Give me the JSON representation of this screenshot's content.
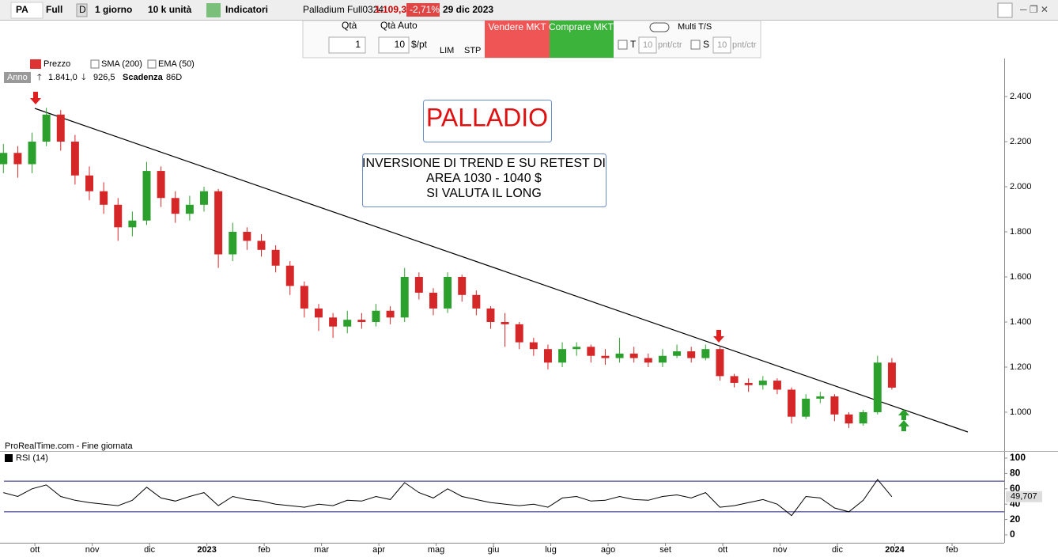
{
  "toolbar": {
    "symbol": "PA",
    "mode": "Full",
    "d": "D",
    "period": "1 giorno",
    "units": "10 k unità",
    "indicators": "Indicatori",
    "instrument": "Palladium Full0324",
    "price": "1.109,3",
    "change": "-2,71%",
    "date": "29 dic 2023"
  },
  "order_panel": {
    "qty_label": "Qtà",
    "qty": 1,
    "qty_auto_label": "Qtà Auto",
    "qty_auto": 10,
    "per_pt": "$/pt",
    "lim": "LIM",
    "stp": "STP",
    "sell": "Vendere MKT",
    "buy": "Comprare MKT",
    "multi": "Multi T/S",
    "t": "T",
    "t_value": 10,
    "t_unit": "pnt/ctr",
    "s": "S",
    "s_value": 10,
    "s_unit": "pnt/ctr"
  },
  "legend": {
    "price": "Prezzo",
    "sma": "SMA (200)",
    "ema": "EMA (50)",
    "period": "Anno",
    "high": "1.841,0",
    "low": "926,5",
    "expiry_label": "Scadenza",
    "expiry": "86D"
  },
  "footer": "ProRealTime.com - Fine giornata",
  "annotations": {
    "title": "PALLADIO",
    "note": [
      "INVERSIONE DI TREND E SU RETEST DI",
      "AREA 1030 - 1040 $",
      "SI VALUTA IL LONG"
    ]
  },
  "chart_data": [
    {
      "type": "candlestick",
      "up_color": "#2ca02c",
      "down_color": "#d62728",
      "x": [
        -0.55,
        -0.3,
        -0.05,
        0.2,
        0.45,
        0.7,
        0.95,
        1.2,
        1.45,
        1.7,
        1.95,
        2.2,
        2.45,
        2.7,
        2.95,
        3.2,
        3.45,
        3.7,
        3.95,
        4.2,
        4.45,
        4.7,
        4.95,
        5.2,
        5.45,
        5.7,
        5.95,
        6.2,
        6.45,
        6.7,
        6.95,
        7.2,
        7.45,
        7.7,
        7.95,
        8.2,
        8.45,
        8.7,
        8.95,
        9.2,
        9.45,
        9.7,
        9.95,
        10.2,
        10.45,
        10.7,
        10.95,
        11.2,
        11.45,
        11.7,
        11.95,
        12.2,
        12.45,
        12.7,
        12.95,
        13.2,
        13.45,
        13.7,
        13.95,
        14.2,
        14.45,
        14.7,
        14.95
      ],
      "open": [
        2100,
        2150,
        2100,
        2200,
        2320,
        2200,
        2050,
        1980,
        1920,
        1820,
        1850,
        2070,
        1950,
        1880,
        1920,
        1980,
        1700,
        1800,
        1760,
        1720,
        1650,
        1560,
        1460,
        1420,
        1380,
        1410,
        1400,
        1450,
        1420,
        1600,
        1530,
        1460,
        1600,
        1520,
        1460,
        1400,
        1390,
        1310,
        1280,
        1220,
        1280,
        1290,
        1250,
        1240,
        1260,
        1240,
        1220,
        1250,
        1270,
        1240,
        1280,
        1160,
        1130,
        1120,
        1140,
        1100,
        980,
        1060,
        1070,
        990,
        950,
        1000,
        1220
      ],
      "high": [
        2190,
        2180,
        2240,
        2350,
        2340,
        2230,
        2090,
        2020,
        1950,
        1890,
        2110,
        2090,
        1980,
        1960,
        2000,
        1990,
        1840,
        1820,
        1790,
        1740,
        1670,
        1580,
        1480,
        1440,
        1450,
        1440,
        1480,
        1470,
        1640,
        1620,
        1550,
        1620,
        1610,
        1540,
        1470,
        1440,
        1400,
        1330,
        1300,
        1310,
        1310,
        1300,
        1280,
        1330,
        1290,
        1260,
        1280,
        1300,
        1290,
        1300,
        1290,
        1170,
        1150,
        1160,
        1150,
        1110,
        1080,
        1090,
        1080,
        1000,
        1010,
        1250,
        1240
      ],
      "low": [
        2060,
        2040,
        2060,
        2180,
        2160,
        2010,
        1940,
        1880,
        1760,
        1780,
        1830,
        1910,
        1840,
        1850,
        1890,
        1640,
        1670,
        1720,
        1690,
        1620,
        1520,
        1420,
        1360,
        1330,
        1350,
        1370,
        1380,
        1390,
        1400,
        1500,
        1430,
        1440,
        1490,
        1430,
        1370,
        1290,
        1280,
        1250,
        1190,
        1200,
        1250,
        1220,
        1210,
        1220,
        1220,
        1200,
        1200,
        1240,
        1220,
        1230,
        1140,
        1110,
        1090,
        1100,
        1080,
        950,
        970,
        1040,
        960,
        930,
        940,
        990,
        1100
      ],
      "close": [
        2150,
        2100,
        2200,
        2320,
        2200,
        2050,
        1980,
        1920,
        1820,
        1850,
        2070,
        1950,
        1880,
        1920,
        1980,
        1700,
        1800,
        1760,
        1720,
        1650,
        1560,
        1460,
        1420,
        1380,
        1410,
        1400,
        1450,
        1420,
        1600,
        1530,
        1460,
        1600,
        1520,
        1460,
        1400,
        1390,
        1310,
        1280,
        1220,
        1280,
        1290,
        1250,
        1240,
        1260,
        1240,
        1220,
        1250,
        1270,
        1240,
        1280,
        1160,
        1130,
        1120,
        1140,
        1100,
        980,
        1060,
        1070,
        990,
        950,
        1000,
        1220,
        1109
      ],
      "xlim": [
        -0.54,
        16.91
      ],
      "ylim": [
        828,
        2565
      ],
      "yticks": [
        {
          "value": 1000,
          "label": "1.000"
        },
        {
          "value": 1200,
          "label": "1.200"
        },
        {
          "value": 1400,
          "label": "1.400"
        },
        {
          "value": 1600,
          "label": "1.600"
        },
        {
          "value": 1800,
          "label": "1.800"
        },
        {
          "value": 2000,
          "label": "2.000"
        },
        {
          "value": 2200,
          "label": "2.200"
        },
        {
          "value": 2400,
          "label": "2.400"
        }
      ]
    },
    {
      "type": "line",
      "name": "RSI (14)",
      "color": "#000000",
      "levels_color": "#1f1f7a",
      "levels": [
        70,
        30
      ],
      "values": [
        55,
        50,
        60,
        65,
        50,
        45,
        42,
        40,
        38,
        45,
        62,
        48,
        44,
        50,
        55,
        38,
        50,
        46,
        44,
        40,
        38,
        36,
        40,
        38,
        45,
        44,
        50,
        46,
        68,
        55,
        48,
        60,
        50,
        46,
        42,
        40,
        38,
        40,
        36,
        48,
        50,
        44,
        45,
        50,
        46,
        45,
        50,
        52,
        48,
        55,
        36,
        38,
        42,
        46,
        40,
        25,
        50,
        48,
        35,
        30,
        45,
        72,
        49.707
      ],
      "value_labels": [
        null,
        null,
        null,
        null,
        null,
        null,
        null,
        null,
        null,
        null,
        null,
        null,
        null,
        null,
        null,
        null,
        null,
        null,
        null,
        null,
        null,
        null,
        null,
        null,
        null,
        null,
        null,
        null,
        null,
        null,
        null,
        null,
        null,
        null,
        null,
        null,
        null,
        null,
        null,
        null,
        null,
        null,
        null,
        null,
        null,
        null,
        null,
        null,
        null,
        null,
        null,
        null,
        null,
        null,
        null,
        null,
        null,
        null,
        null,
        null,
        null,
        null,
        "49,707"
      ],
      "xlim": [
        -0.54,
        16.91
      ],
      "ylim": [
        -9.3,
        107.2
      ],
      "yticks": [
        0,
        20,
        40,
        60,
        80,
        100
      ],
      "xticks": [
        {
          "value": 0,
          "label": "ott"
        },
        {
          "value": 1,
          "label": "nov"
        },
        {
          "value": 2,
          "label": "dic"
        },
        {
          "value": 3,
          "label": "2023"
        },
        {
          "value": 4,
          "label": "feb"
        },
        {
          "value": 5,
          "label": "mar"
        },
        {
          "value": 6,
          "label": "apr"
        },
        {
          "value": 7,
          "label": "mag"
        },
        {
          "value": 8,
          "label": "giu"
        },
        {
          "value": 9,
          "label": "lug"
        },
        {
          "value": 10,
          "label": "ago"
        },
        {
          "value": 11,
          "label": "set"
        },
        {
          "value": 12,
          "label": "ott"
        },
        {
          "value": 13,
          "label": "nov"
        },
        {
          "value": 14,
          "label": "dic"
        },
        {
          "value": 15,
          "label": "2024"
        },
        {
          "value": 16,
          "label": "feb"
        }
      ]
    }
  ]
}
